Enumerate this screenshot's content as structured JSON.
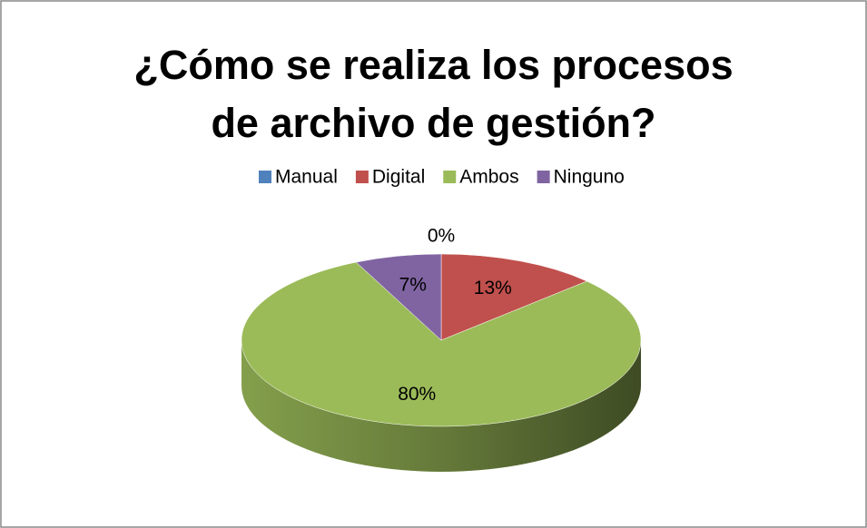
{
  "chart_data": {
    "type": "pie",
    "title": "¿Cómo se realiza los procesos de archivo de gestión?",
    "categories": [
      "Manual",
      "Digital",
      "Ambos",
      "Ninguno"
    ],
    "values": [
      0,
      13,
      80,
      7
    ],
    "value_labels": [
      "0%",
      "13%",
      "80%",
      "7%"
    ],
    "colors": [
      "#4f81bd",
      "#c0504d",
      "#9bbb59",
      "#8064a2"
    ],
    "legend": "top"
  }
}
